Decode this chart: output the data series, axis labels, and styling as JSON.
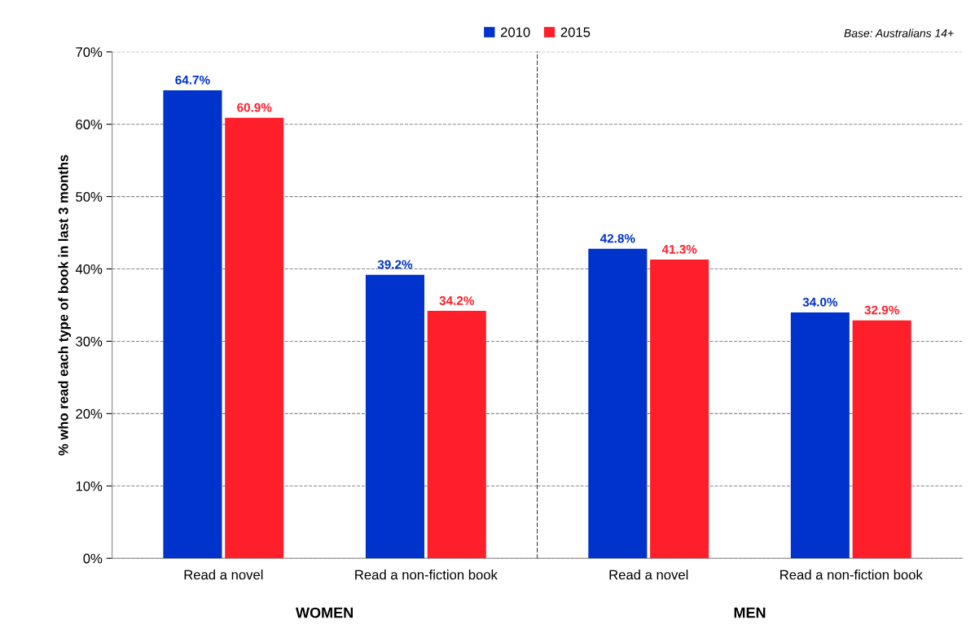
{
  "chart_data": [
    {
      "type": "bar",
      "xlabel": "WOMEN",
      "ylabel": "% who read each type of book in last 3 months",
      "categories": [
        "Read a novel",
        "Read a non-fiction book"
      ],
      "series": [
        {
          "name": "2010",
          "color": "#0033cc",
          "values": [
            64.7,
            39.2
          ],
          "value_labels": [
            "64.7%",
            "39.2%"
          ]
        },
        {
          "name": "2015",
          "color": "#ff1f2b",
          "values": [
            60.9,
            34.2
          ],
          "value_labels": [
            "60.9%",
            "34.2%"
          ]
        }
      ],
      "ylim": [
        0,
        70
      ],
      "yticks": [
        {
          "value": 0,
          "label": "0%"
        },
        {
          "value": 10,
          "label": "10%"
        },
        {
          "value": 20,
          "label": "20%"
        },
        {
          "value": 30,
          "label": "30%"
        },
        {
          "value": 40,
          "label": "40%"
        },
        {
          "value": 50,
          "label": "50%"
        },
        {
          "value": 60,
          "label": "60%"
        },
        {
          "value": 70,
          "label": "70%"
        }
      ],
      "grid": "y",
      "legend": "top right"
    },
    {
      "type": "bar",
      "xlabel": "MEN",
      "categories": [
        "Read a novel",
        "Read a non-fiction book"
      ],
      "series": [
        {
          "color": "#0033cc",
          "values": [
            42.8,
            34.0
          ],
          "value_labels": [
            "42.8%",
            "34.0%"
          ]
        },
        {
          "color": "#ff1f2b",
          "values": [
            41.3,
            32.9
          ],
          "value_labels": [
            "41.3%",
            "32.9%"
          ]
        }
      ],
      "ylim": [
        0,
        70
      ],
      "yticks": [
        0,
        10,
        20,
        30,
        40,
        50,
        60,
        70
      ],
      "tick_labels": "x",
      "grid": "y",
      "annotations": [
        "Base: Australians 14+"
      ]
    }
  ]
}
